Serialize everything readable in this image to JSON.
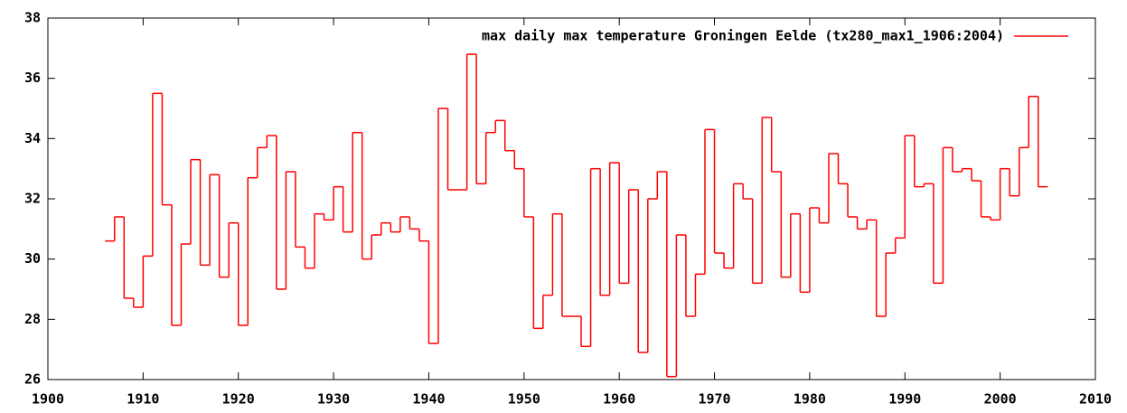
{
  "chart_data": {
    "type": "step",
    "x": [
      1906,
      1907,
      1908,
      1909,
      1910,
      1911,
      1912,
      1913,
      1914,
      1915,
      1916,
      1917,
      1918,
      1919,
      1920,
      1921,
      1922,
      1923,
      1924,
      1925,
      1926,
      1927,
      1928,
      1929,
      1930,
      1931,
      1932,
      1933,
      1934,
      1935,
      1936,
      1937,
      1938,
      1939,
      1940,
      1941,
      1942,
      1943,
      1944,
      1945,
      1946,
      1947,
      1948,
      1949,
      1950,
      1951,
      1952,
      1953,
      1954,
      1955,
      1956,
      1957,
      1958,
      1959,
      1960,
      1961,
      1962,
      1963,
      1964,
      1965,
      1966,
      1967,
      1968,
      1969,
      1970,
      1971,
      1972,
      1973,
      1974,
      1975,
      1976,
      1977,
      1978,
      1979,
      1980,
      1981,
      1982,
      1983,
      1984,
      1985,
      1986,
      1987,
      1988,
      1989,
      1990,
      1991,
      1992,
      1993,
      1994,
      1995,
      1996,
      1997,
      1998,
      1999,
      2000,
      2001,
      2002,
      2003,
      2004
    ],
    "series": [
      {
        "name": "max daily max temperature Groningen Eelde (tx280_max1_1906:2004)",
        "color": "#ff0000",
        "values": [
          30.6,
          31.4,
          28.7,
          28.4,
          30.1,
          35.5,
          31.8,
          27.8,
          30.5,
          33.3,
          29.8,
          32.8,
          29.4,
          31.2,
          27.8,
          32.7,
          33.7,
          34.1,
          29.0,
          32.9,
          30.4,
          29.7,
          31.5,
          31.3,
          32.4,
          30.9,
          34.2,
          30.0,
          30.8,
          31.2,
          30.9,
          31.4,
          31.0,
          30.6,
          27.2,
          35.0,
          32.3,
          32.3,
          36.8,
          32.5,
          34.2,
          34.6,
          33.6,
          33.0,
          31.4,
          27.7,
          28.8,
          31.5,
          28.1,
          28.1,
          27.1,
          33.0,
          28.8,
          33.2,
          29.2,
          32.3,
          26.9,
          32.0,
          32.9,
          26.1,
          30.8,
          28.1,
          29.5,
          34.3,
          30.2,
          29.7,
          32.5,
          32.0,
          29.2,
          34.7,
          32.9,
          29.4,
          31.5,
          28.9,
          31.7,
          31.2,
          33.5,
          32.5,
          31.4,
          31.0,
          31.3,
          28.1,
          30.2,
          30.7,
          34.1,
          32.4,
          32.5,
          29.2,
          33.7,
          32.9,
          33.0,
          32.6,
          31.4,
          31.3,
          33.0,
          32.1,
          33.7,
          35.4,
          32.4
        ]
      }
    ],
    "xlim": [
      1900,
      2010
    ],
    "xticks": [
      1900,
      1910,
      1920,
      1930,
      1940,
      1950,
      1960,
      1970,
      1980,
      1990,
      2000,
      2010
    ],
    "ylim": [
      26,
      38
    ],
    "yticks": [
      26,
      28,
      30,
      32,
      34,
      36,
      38
    ],
    "legend": "top right"
  }
}
